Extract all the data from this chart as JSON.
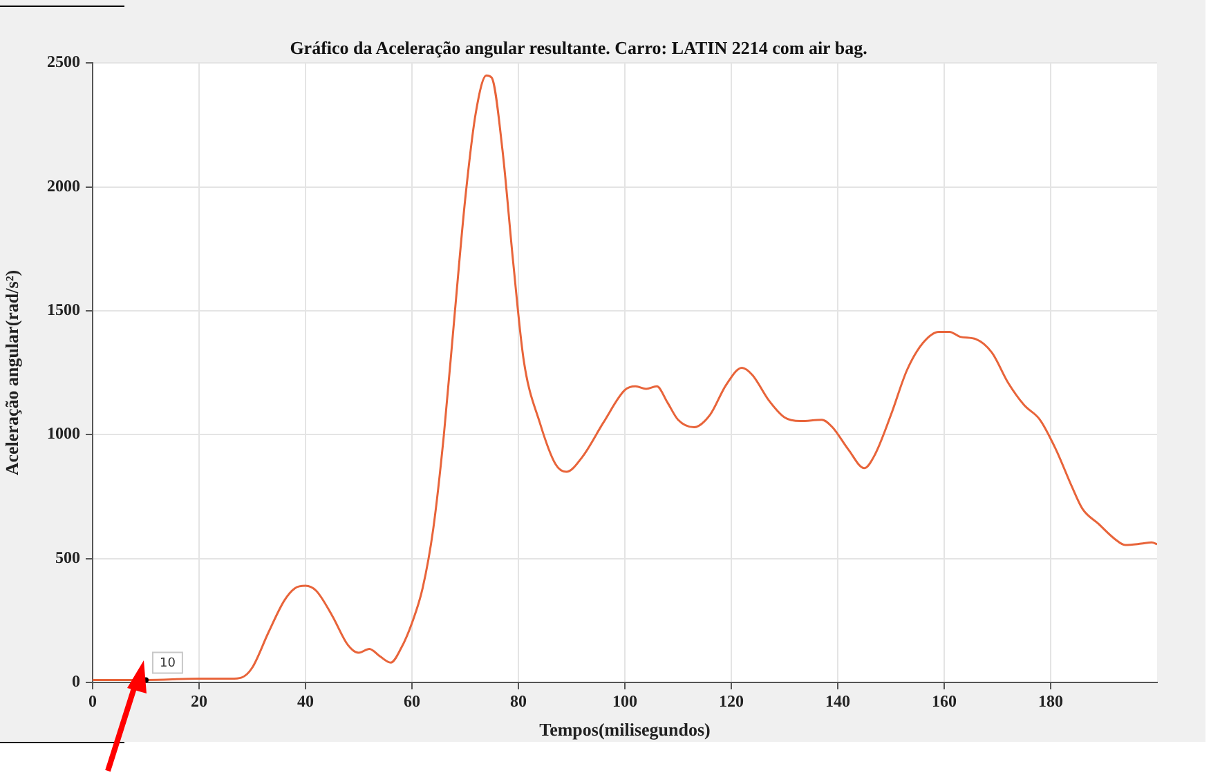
{
  "chart_data": {
    "type": "line",
    "title": "Gráfico da Aceleração angular resultante. Carro: LATIN 2214 com air bag.",
    "xlabel": "Tempos(milisegundos)",
    "ylabel": "Aceleração angular(rad/s²)",
    "x": [
      0,
      10,
      20,
      26,
      28,
      30,
      33,
      36,
      38,
      40,
      42,
      45,
      48,
      50,
      52,
      54,
      56,
      58,
      60,
      62,
      64,
      66,
      68,
      70,
      72,
      74,
      75,
      77,
      79,
      81,
      84,
      87,
      89,
      92,
      96,
      100,
      102,
      104,
      106,
      108,
      110,
      113,
      116,
      119,
      122,
      124,
      127,
      130,
      133,
      137,
      139,
      142,
      145,
      147,
      150,
      153,
      156,
      159,
      161,
      163,
      166,
      169,
      172,
      175,
      178,
      181,
      184,
      186,
      189,
      192,
      194,
      197,
      199,
      200
    ],
    "series": [
      {
        "color": "#e8643a",
        "values": [
          10,
          10,
          15,
          15,
          20,
          60,
          200,
          330,
          380,
          390,
          370,
          270,
          150,
          120,
          135,
          105,
          80,
          140,
          240,
          380,
          620,
          1000,
          1480,
          1950,
          2300,
          2450,
          2440,
          2150,
          1700,
          1300,
          1050,
          880,
          850,
          910,
          1050,
          1180,
          1195,
          1185,
          1195,
          1130,
          1060,
          1030,
          1080,
          1200,
          1270,
          1240,
          1140,
          1070,
          1055,
          1060,
          1030,
          940,
          865,
          920,
          1080,
          1260,
          1370,
          1415,
          1415,
          1395,
          1385,
          1330,
          1210,
          1120,
          1060,
          940,
          790,
          700,
          640,
          580,
          555,
          560,
          565,
          558
        ]
      }
    ],
    "xlim": [
      0,
      200
    ],
    "ylim": [
      0,
      2500
    ],
    "xticks": [
      0,
      20,
      40,
      60,
      80,
      100,
      120,
      140,
      160,
      180
    ],
    "yticks": [
      0,
      500,
      1000,
      1500,
      2000,
      2500
    ],
    "grid": true,
    "marker": "none",
    "annotations": [
      {
        "text": "10",
        "x": 10,
        "y": 10
      }
    ]
  }
}
